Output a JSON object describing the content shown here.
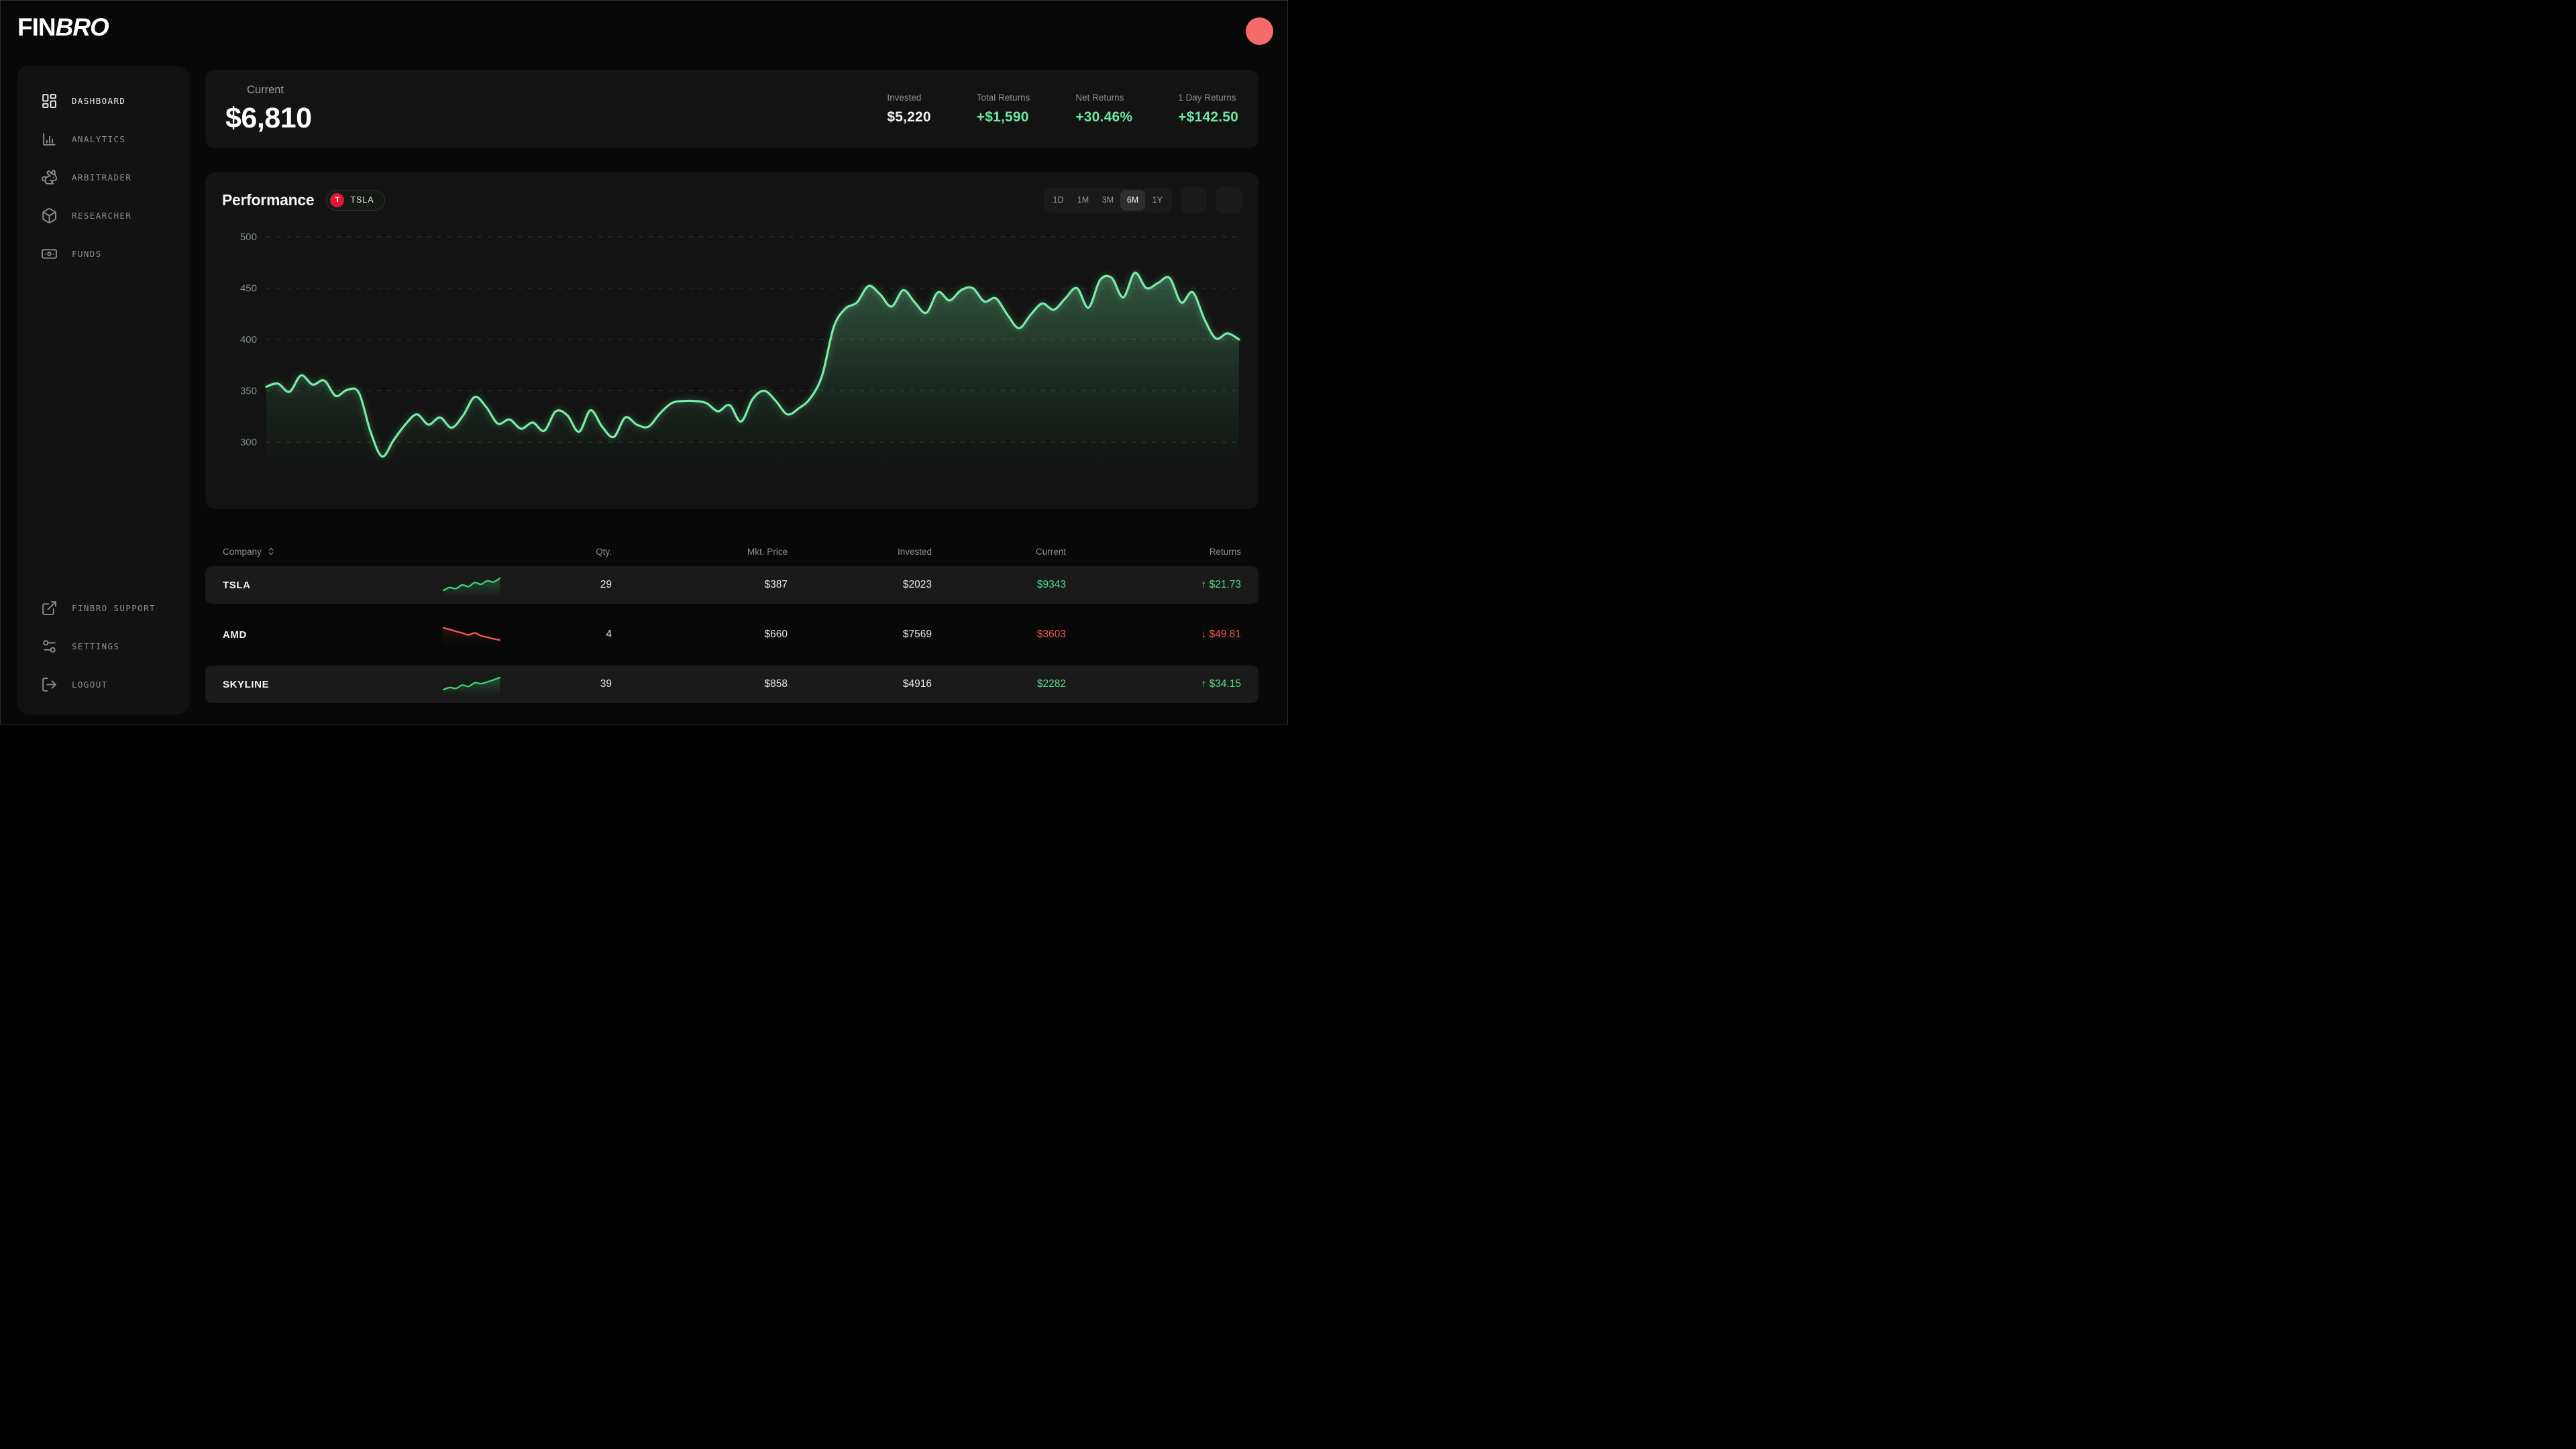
{
  "brand": {
    "name_regular": "FIN",
    "name_italic": "BRO"
  },
  "topbar": {
    "avatar_color": "#f56b6b"
  },
  "sidebar": {
    "items": [
      {
        "label": "DASHBOARD",
        "icon": "dashboard-icon",
        "active": true
      },
      {
        "label": "ANALYTICS",
        "icon": "analytics-icon",
        "active": false
      },
      {
        "label": "ARBITRADER",
        "icon": "rabbit-icon",
        "active": false
      },
      {
        "label": "RESEARCHER",
        "icon": "box-icon",
        "active": false
      },
      {
        "label": "FUNDS",
        "icon": "banknote-icon",
        "active": false
      }
    ],
    "footer_items": [
      {
        "label": "FINBRO SUPPORT",
        "icon": "external-link-icon"
      },
      {
        "label": "SETTINGS",
        "icon": "sliders-icon"
      },
      {
        "label": "LOGOUT",
        "icon": "logout-icon"
      }
    ]
  },
  "summary": {
    "label": "Current",
    "value": "$6,810",
    "stats": [
      {
        "label": "Invested",
        "value": "$5,220",
        "tone": "white"
      },
      {
        "label": "Total Returns",
        "value": "+$1,590",
        "tone": "green"
      },
      {
        "label": "Net Returns",
        "value": "+30.46%",
        "tone": "green"
      },
      {
        "label": "1 Day Returns",
        "value": "+$142.50",
        "tone": "green"
      }
    ]
  },
  "performance": {
    "title": "Performance",
    "ticker_badge": {
      "letter": "T",
      "label": "TSLA",
      "color": "#e11931"
    },
    "ranges": [
      {
        "label": "1D",
        "active": false
      },
      {
        "label": "1M",
        "active": false
      },
      {
        "label": "3M",
        "active": false
      },
      {
        "label": "6M",
        "active": true
      },
      {
        "label": "1Y",
        "active": false
      }
    ]
  },
  "chart_data": {
    "type": "area",
    "title": "Performance",
    "x_range_selected": "6M",
    "series": [
      {
        "name": "TSLA",
        "values": [
          354,
          357,
          349,
          365,
          356,
          360,
          345,
          351,
          348,
          310,
          286,
          302,
          317,
          327,
          317,
          324,
          314,
          326,
          344,
          334,
          318,
          322,
          313,
          319,
          311,
          330,
          326,
          310,
          331,
          315,
          305,
          324,
          317,
          315,
          328,
          338,
          340,
          340,
          338,
          330,
          336,
          320,
          342,
          350,
          340,
          327,
          333,
          343,
          365,
          412,
          430,
          436,
          452,
          444,
          432,
          448,
          436,
          426,
          446,
          438,
          448,
          450,
          437,
          440,
          424,
          411,
          424,
          435,
          429,
          440,
          450,
          431,
          458,
          460,
          441,
          465,
          450,
          455,
          460,
          436,
          446,
          420,
          401,
          406,
          400
        ]
      }
    ],
    "ylabel": "",
    "xlabel": "",
    "y_ticks": [
      300,
      350,
      400,
      450,
      500
    ],
    "ylim": [
      262,
      508
    ],
    "grid": "dashed-horizontal",
    "legend": "none",
    "line_color": "#79eda8",
    "fill": "green-gradient-to-transparent"
  },
  "holdings_table": {
    "columns": [
      {
        "label": "Company",
        "sortable": true
      },
      {
        "label": "Qty."
      },
      {
        "label": "Mkt. Price"
      },
      {
        "label": "Invested"
      },
      {
        "label": "Current"
      },
      {
        "label": "Returns"
      }
    ],
    "rows": [
      {
        "company": "TSLA",
        "spark": [
          2.0,
          3.0,
          2.6,
          3.9,
          3.3,
          4.7,
          4.1,
          5.3,
          4.9,
          6.2
        ],
        "trend": "up",
        "qty": "29",
        "mkt_price": "$387",
        "invested": "$2023",
        "current": "$9343",
        "returns": "↑ $21.73"
      },
      {
        "company": "AMD",
        "spark": [
          6.2,
          5.8,
          5.3,
          4.9,
          4.4,
          4.9,
          4.2,
          3.8,
          3.4,
          3.1
        ],
        "trend": "down",
        "qty": "4",
        "mkt_price": "$660",
        "invested": "$7569",
        "current": "$3603",
        "returns": "↓ $49.81"
      },
      {
        "company": "SKYLINE",
        "spark": [
          2.2,
          2.9,
          2.6,
          3.7,
          3.3,
          4.5,
          4.2,
          4.8,
          5.5,
          6.3
        ],
        "trend": "up",
        "qty": "39",
        "mkt_price": "$858",
        "invested": "$4916",
        "current": "$2282",
        "returns": "↑ $34.15"
      }
    ]
  },
  "colors": {
    "page_bg": "#070807",
    "card_bg": "#121312",
    "sidebar_bg": "#111211",
    "row_bg": "#191a19",
    "green_text": "#6fe7a3",
    "table_green": "#4fdd8f",
    "red_text": "#f2564e",
    "chart_line": "#79eda8",
    "badge_red": "#e11931",
    "muted_text": "#8c8f8c",
    "tick_text": "#7c8e82",
    "avatar": "#f56b6b"
  }
}
